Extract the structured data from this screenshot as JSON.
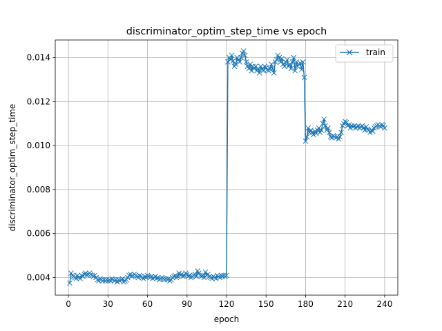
{
  "chart_data": {
    "type": "line",
    "title": "discriminator_optim_step_time vs epoch",
    "xlabel": "epoch",
    "ylabel": "discriminator_optim_step_time",
    "xlim": [
      -10,
      250
    ],
    "ylim": [
      0.0032,
      0.0148
    ],
    "xticks": [
      0,
      30,
      60,
      90,
      120,
      150,
      180,
      210,
      240
    ],
    "yticks": [
      0.004,
      0.006,
      0.008,
      0.01,
      0.012,
      0.014
    ],
    "ytick_labels": [
      "0.004",
      "0.006",
      "0.008",
      "0.010",
      "0.012",
      "0.014"
    ],
    "grid": true,
    "legend_position": "top-right",
    "color": "#1f77b4",
    "marker": "x",
    "series": [
      {
        "name": "train",
        "x": [
          1,
          2,
          3,
          4,
          5,
          6,
          7,
          8,
          9,
          10,
          11,
          12,
          13,
          14,
          15,
          16,
          17,
          18,
          19,
          20,
          21,
          22,
          23,
          24,
          25,
          26,
          27,
          28,
          29,
          30,
          31,
          32,
          33,
          34,
          35,
          36,
          37,
          38,
          39,
          40,
          41,
          42,
          43,
          44,
          45,
          46,
          47,
          48,
          49,
          50,
          51,
          52,
          53,
          54,
          55,
          56,
          57,
          58,
          59,
          60,
          61,
          62,
          63,
          64,
          65,
          66,
          67,
          68,
          69,
          70,
          71,
          72,
          73,
          74,
          75,
          76,
          77,
          78,
          79,
          80,
          81,
          82,
          83,
          84,
          85,
          86,
          87,
          88,
          89,
          90,
          91,
          92,
          93,
          94,
          95,
          96,
          97,
          98,
          99,
          100,
          101,
          102,
          103,
          104,
          105,
          106,
          107,
          108,
          109,
          110,
          111,
          112,
          113,
          114,
          115,
          116,
          117,
          118,
          119,
          120,
          121,
          122,
          123,
          124,
          125,
          126,
          127,
          128,
          129,
          130,
          131,
          132,
          133,
          134,
          135,
          136,
          137,
          138,
          139,
          140,
          141,
          142,
          143,
          144,
          145,
          146,
          147,
          148,
          149,
          150,
          151,
          152,
          153,
          154,
          155,
          156,
          157,
          158,
          159,
          160,
          161,
          162,
          163,
          164,
          165,
          166,
          167,
          168,
          169,
          170,
          171,
          172,
          173,
          174,
          175,
          176,
          177,
          178,
          179,
          180,
          181,
          182,
          183,
          184,
          185,
          186,
          187,
          188,
          189,
          190,
          191,
          192,
          193,
          194,
          195,
          196,
          197,
          198,
          199,
          200,
          201,
          202,
          203,
          204,
          205,
          206,
          207,
          208,
          209,
          210,
          211,
          212,
          213,
          214,
          215,
          216,
          217,
          218,
          219,
          220,
          221,
          222,
          223,
          224,
          225,
          226,
          227,
          228,
          229,
          230,
          231,
          232,
          233,
          234,
          235,
          236,
          237,
          238,
          239,
          240
        ],
        "values": [
          0.00375,
          0.0042,
          0.0041,
          0.00405,
          0.004,
          0.00395,
          0.0041,
          0.004,
          0.00395,
          0.0041,
          0.00405,
          0.00415,
          0.0042,
          0.0041,
          0.00415,
          0.0042,
          0.00415,
          0.0041,
          0.00405,
          0.0041,
          0.004,
          0.0039,
          0.00385,
          0.00395,
          0.0039,
          0.00385,
          0.0039,
          0.00385,
          0.0039,
          0.00385,
          0.0039,
          0.00385,
          0.00395,
          0.0039,
          0.00385,
          0.0039,
          0.0038,
          0.0039,
          0.00385,
          0.0039,
          0.00395,
          0.0038,
          0.00385,
          0.0039,
          0.004,
          0.0041,
          0.00415,
          0.00405,
          0.0041,
          0.00415,
          0.0041,
          0.00405,
          0.004,
          0.0041,
          0.00405,
          0.004,
          0.00395,
          0.00405,
          0.004,
          0.0041,
          0.00405,
          0.004,
          0.00405,
          0.00395,
          0.004,
          0.00405,
          0.00395,
          0.004,
          0.0039,
          0.00395,
          0.004,
          0.00395,
          0.0039,
          0.00395,
          0.0039,
          0.00395,
          0.00385,
          0.0039,
          0.004,
          0.00405,
          0.0041,
          0.004,
          0.00405,
          0.0042,
          0.0041,
          0.00415,
          0.00405,
          0.0041,
          0.0042,
          0.00415,
          0.00405,
          0.0041,
          0.004,
          0.00405,
          0.0041,
          0.00415,
          0.00405,
          0.0043,
          0.0042,
          0.0041,
          0.00405,
          0.0041,
          0.004,
          0.00425,
          0.0041,
          0.00415,
          0.00405,
          0.004,
          0.00395,
          0.00405,
          0.004,
          0.00395,
          0.0041,
          0.00405,
          0.004,
          0.0041,
          0.00405,
          0.0041,
          0.00405,
          0.0041,
          0.0138,
          0.014,
          0.0139,
          0.0141,
          0.01385,
          0.0136,
          0.0137,
          0.014,
          0.0139,
          0.0138,
          0.014,
          0.0142,
          0.0143,
          0.0141,
          0.0138,
          0.0136,
          0.0135,
          0.0137,
          0.0134,
          0.0136,
          0.0135,
          0.0136,
          0.0134,
          0.0135,
          0.0133,
          0.0136,
          0.0135,
          0.0134,
          0.0136,
          0.01355,
          0.01345,
          0.0134,
          0.0135,
          0.0137,
          0.0135,
          0.0133,
          0.0138,
          0.0139,
          0.0141,
          0.014,
          0.0138,
          0.01395,
          0.0137,
          0.0136,
          0.0138,
          0.0139,
          0.0136,
          0.0137,
          0.0135,
          0.0138,
          0.014,
          0.0134,
          0.0138,
          0.0136,
          0.0137,
          0.01375,
          0.01345,
          0.0138,
          0.0131,
          0.0102,
          0.0104,
          0.0108,
          0.0106,
          0.0107,
          0.0106,
          0.0105,
          0.01065,
          0.01055,
          0.0107,
          0.0108,
          0.0106,
          0.0107,
          0.011,
          0.0112,
          0.0109,
          0.0107,
          0.0108,
          0.0106,
          0.0104,
          0.01035,
          0.01045,
          0.0104,
          0.01035,
          0.0104,
          0.0103,
          0.0104,
          0.0106,
          0.0109,
          0.011,
          0.0111,
          0.01105,
          0.0109,
          0.01095,
          0.0108,
          0.0109,
          0.01085,
          0.0109,
          0.0108,
          0.01085,
          0.0109,
          0.0108,
          0.01085,
          0.0109,
          0.0108,
          0.0107,
          0.01085,
          0.01075,
          0.0107,
          0.0106,
          0.0107,
          0.01065,
          0.0108,
          0.01085,
          0.0109,
          0.01095,
          0.0109,
          0.01085,
          0.01095,
          0.0109,
          0.0108
        ]
      }
    ]
  }
}
